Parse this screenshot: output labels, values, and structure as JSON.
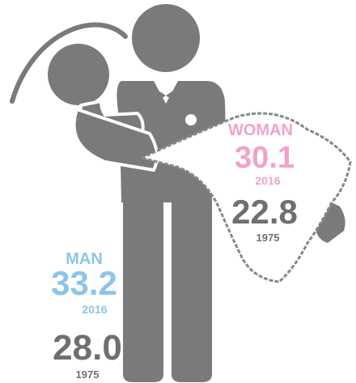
{
  "woman": {
    "label": "WOMAN",
    "recent": {
      "value": "30.1",
      "year": "2016"
    },
    "past": {
      "value": "22.8",
      "year": "1975"
    }
  },
  "man": {
    "label": "MAN",
    "recent": {
      "value": "33.2",
      "year": "2016"
    },
    "past": {
      "value": "28.0",
      "year": "1975"
    }
  }
}
